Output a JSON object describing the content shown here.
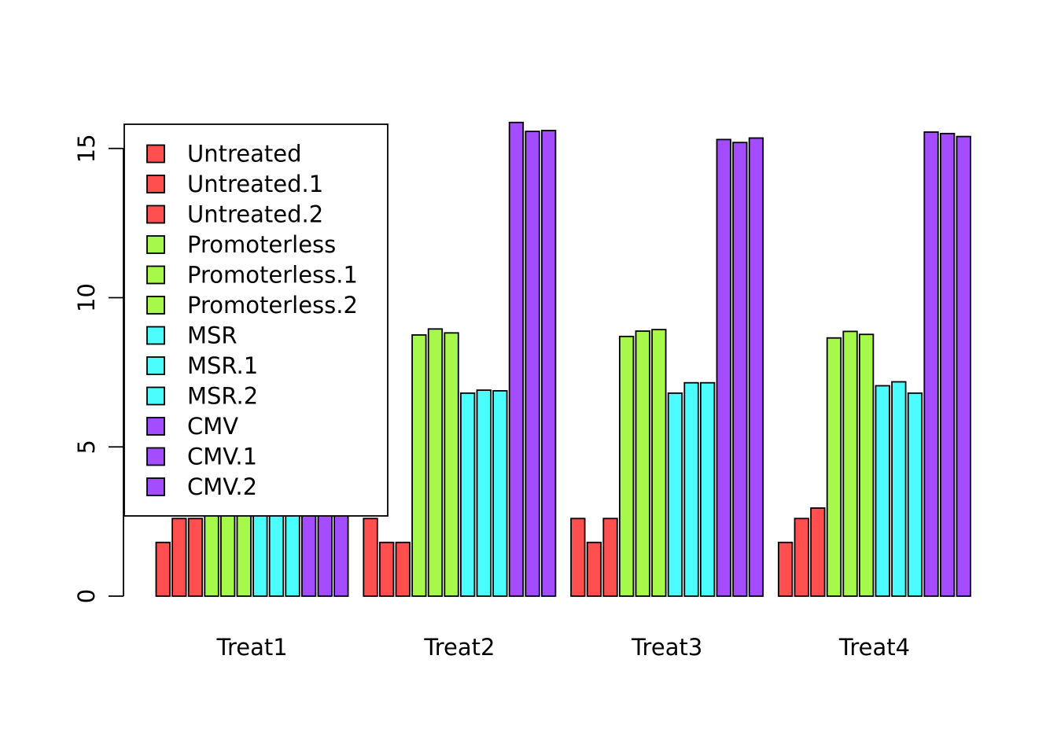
{
  "chart_data": {
    "type": "bar",
    "layout": "grouped",
    "title": "",
    "xlabel": "",
    "ylabel": "",
    "ylim": [
      0,
      16
    ],
    "yticks": [
      0,
      5,
      10,
      15
    ],
    "grid": false,
    "legend_position": "top-left",
    "categories": [
      "Treat1",
      "Treat2",
      "Treat3",
      "Treat4"
    ],
    "series": [
      {
        "name": "Untreated",
        "color": "#ff4f4f",
        "values": [
          1.8,
          2.6,
          2.6,
          1.8
        ]
      },
      {
        "name": "Untreated.1",
        "color": "#ff4f4f",
        "values": [
          2.6,
          1.8,
          1.8,
          2.6
        ]
      },
      {
        "name": "Untreated.2",
        "color": "#ff4f4f",
        "values": [
          2.6,
          1.8,
          2.6,
          2.95
        ]
      },
      {
        "name": "Promoterless",
        "color": "#a6f84a",
        "values": [
          2.9,
          8.75,
          8.7,
          8.65
        ]
      },
      {
        "name": "Promoterless.1",
        "color": "#a6f84a",
        "values": [
          2.9,
          8.95,
          8.88,
          8.87
        ]
      },
      {
        "name": "Promoterless.2",
        "color": "#a6f84a",
        "values": [
          2.9,
          8.82,
          8.93,
          8.77
        ]
      },
      {
        "name": "MSR",
        "color": "#4cfdff",
        "values": [
          2.9,
          6.8,
          6.8,
          7.05
        ]
      },
      {
        "name": "MSR.1",
        "color": "#4cfdff",
        "values": [
          2.9,
          6.9,
          7.15,
          7.18
        ]
      },
      {
        "name": "MSR.2",
        "color": "#4cfdff",
        "values": [
          2.9,
          6.88,
          7.15,
          6.8
        ]
      },
      {
        "name": "CMV",
        "color": "#a44cff",
        "values": [
          2.9,
          15.87,
          15.3,
          15.55
        ]
      },
      {
        "name": "CMV.1",
        "color": "#a44cff",
        "values": [
          2.9,
          15.57,
          15.2,
          15.5
        ]
      },
      {
        "name": "CMV.2",
        "color": "#a44cff",
        "values": [
          2.9,
          15.6,
          15.35,
          15.4
        ]
      }
    ]
  }
}
